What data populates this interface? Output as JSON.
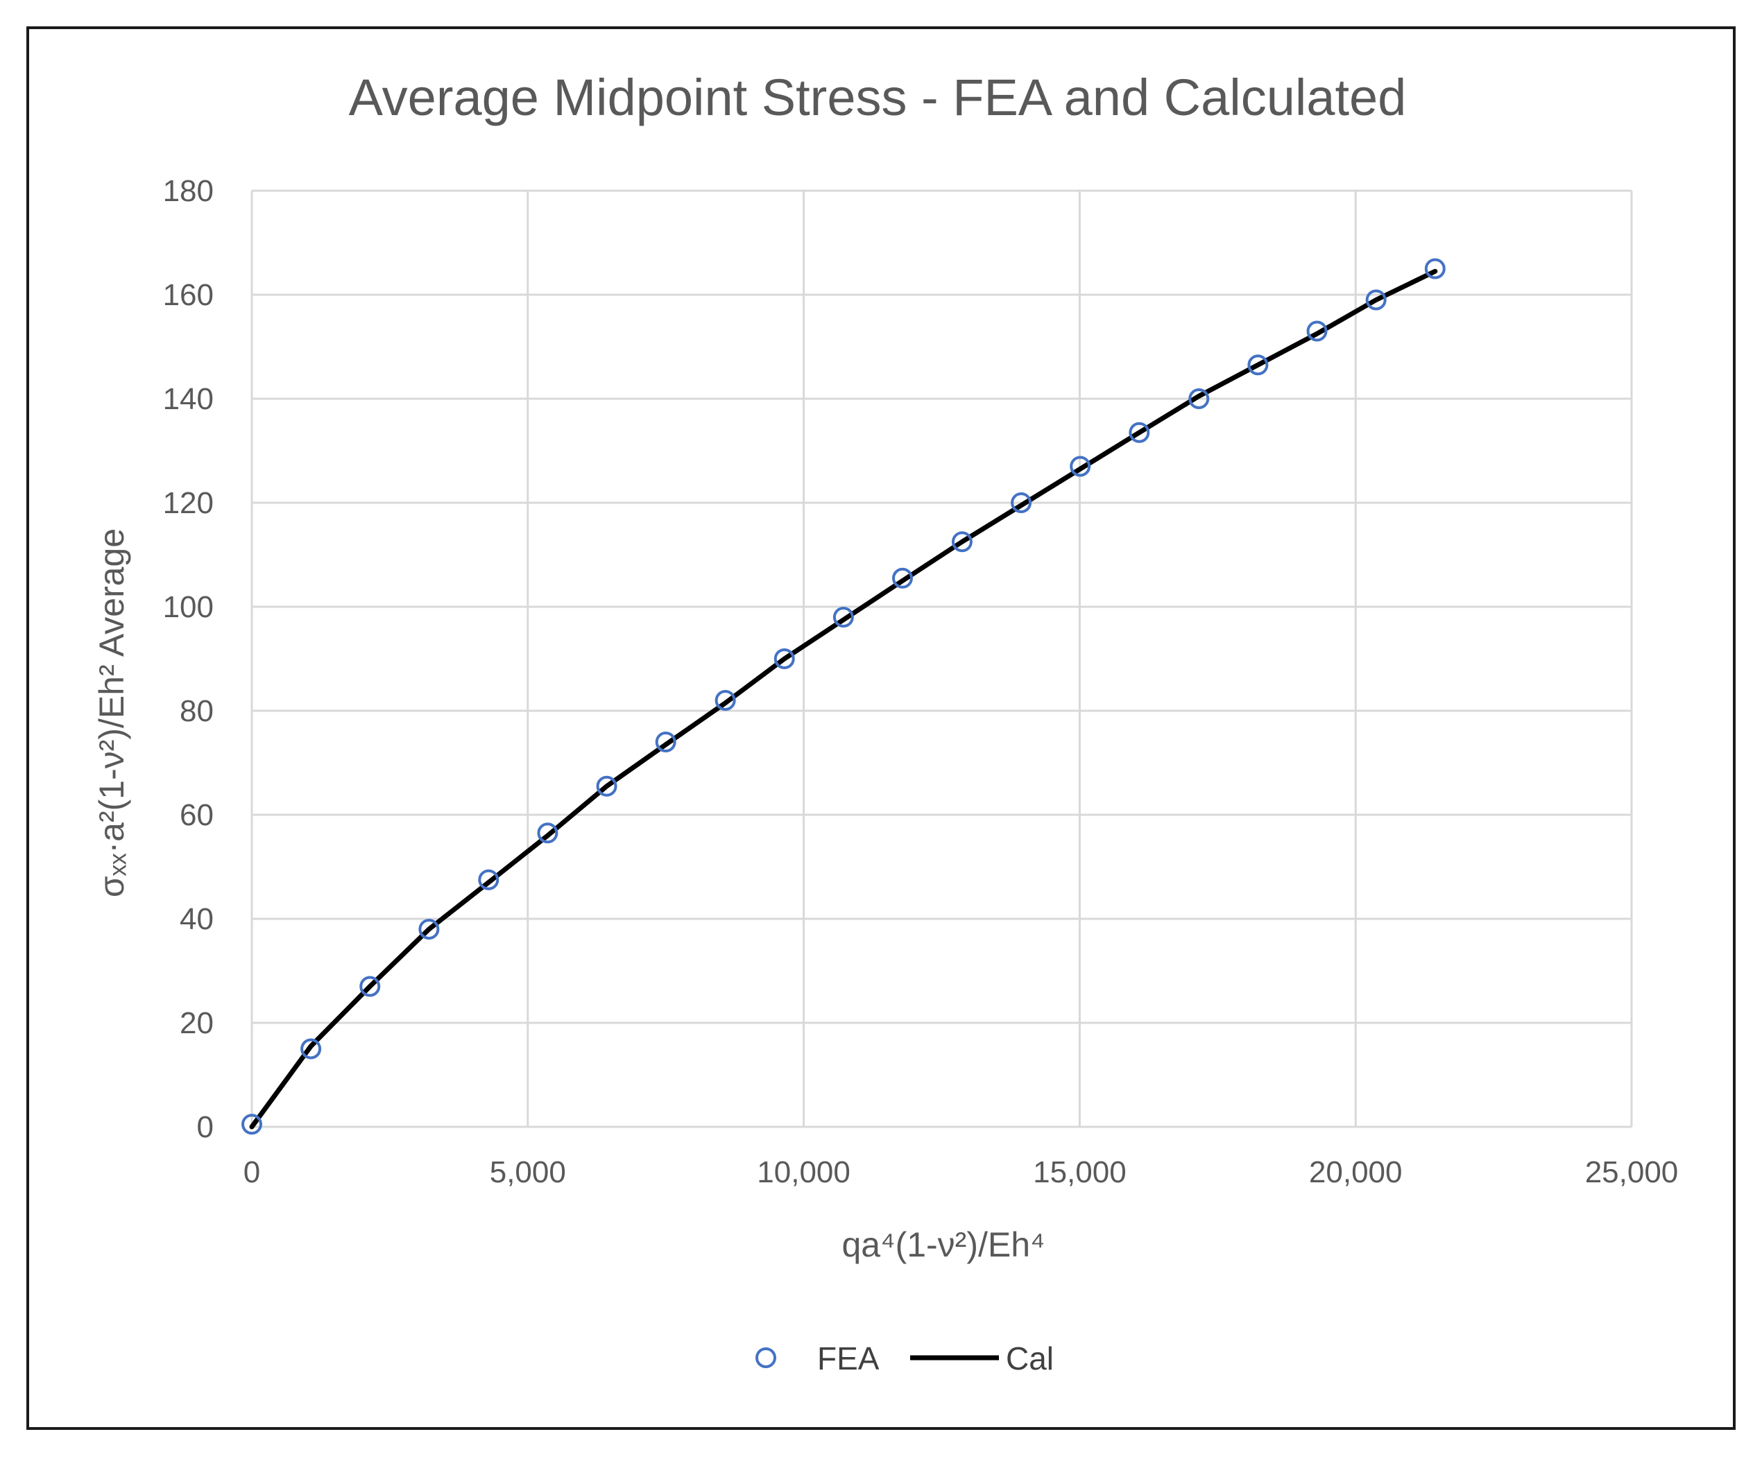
{
  "chart_data": {
    "type": "scatter",
    "title": "Average Midpoint Stress  - FEA and Calculated",
    "xlabel": "qa⁴(1-ν²)/Eh⁴",
    "ylabel": "σₓₓ·a²(1-ν²)/Eh² Average",
    "xlim": [
      0,
      25000
    ],
    "ylim": [
      0,
      180
    ],
    "xticks": [
      0,
      5000,
      10000,
      15000,
      20000,
      25000
    ],
    "xtick_labels": [
      "0",
      "5,000",
      "10,000",
      "15,000",
      "20,000",
      "25,000"
    ],
    "yticks": [
      0,
      20,
      40,
      60,
      80,
      100,
      120,
      140,
      160,
      180
    ],
    "ytick_labels": [
      "0",
      "20",
      "40",
      "60",
      "80",
      "100",
      "120",
      "140",
      "160",
      "180"
    ],
    "grid": true,
    "legend_position": "bottom",
    "series": [
      {
        "name": "FEA",
        "kind": "markers",
        "color": "#4472c4",
        "x": [
          0,
          1070,
          2140,
          3210,
          4290,
          5360,
          6430,
          7500,
          8580,
          9650,
          10720,
          11790,
          12870,
          13940,
          15010,
          16080,
          17160,
          18230,
          19300,
          20370,
          21440
        ],
        "y": [
          0.5,
          15,
          27,
          38,
          47.5,
          56.5,
          65.5,
          74,
          82,
          90,
          98,
          105.5,
          112.5,
          120,
          127,
          133.5,
          140,
          146.5,
          153,
          159,
          165
        ]
      },
      {
        "name": "Cal",
        "kind": "line",
        "color": "#000000",
        "x": [
          0,
          1070,
          2140,
          3210,
          4290,
          5360,
          6430,
          7500,
          8580,
          9650,
          10720,
          11790,
          12870,
          13940,
          15010,
          16080,
          17160,
          18230,
          19300,
          20370,
          21440
        ],
        "y": [
          0,
          15.5,
          27,
          38,
          47,
          56,
          65.5,
          73.5,
          81.5,
          90,
          97.5,
          105,
          112.5,
          119.5,
          126.5,
          133.5,
          140.5,
          146.5,
          152.5,
          159,
          164.5
        ]
      }
    ]
  }
}
